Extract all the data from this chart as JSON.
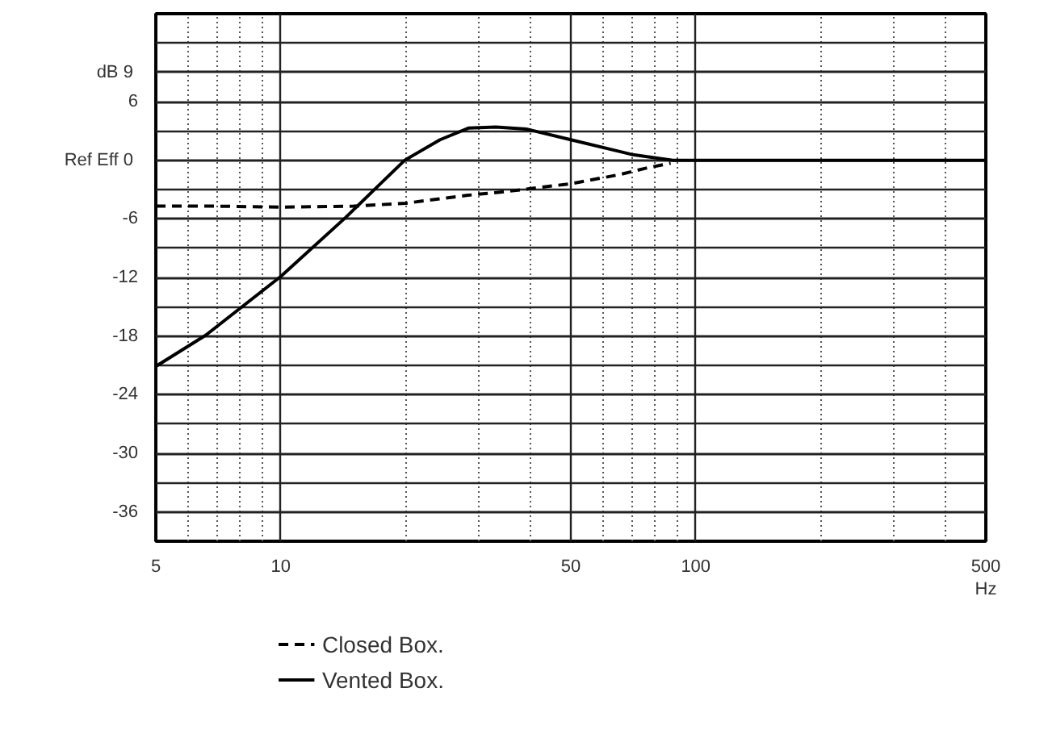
{
  "chart_data": {
    "type": "line",
    "xlabel": "Hz",
    "log": "x",
    "grid": true,
    "legend": "bottom left",
    "xlim": [
      5,
      500
    ],
    "ylim": [
      -39,
      15
    ],
    "xticks": [
      5,
      10,
      50,
      100,
      500
    ],
    "yticks": [
      {
        "value": 9,
        "label": "dB  9"
      },
      6,
      {
        "value": 0,
        "label": "Ref Eff  0"
      },
      -6,
      -12,
      -18,
      -24,
      -30,
      -36
    ],
    "series": [
      {
        "name": "Closed Box.",
        "color": "#000000",
        "line_style": "dashed",
        "x": [
          5,
          7,
          10,
          15,
          20,
          28,
          35,
          50,
          65,
          76,
          87
        ],
        "values": [
          -4.7,
          -4.7,
          -4.8,
          -4.7,
          -4.4,
          -3.6,
          -3.2,
          -2.4,
          -1.5,
          -0.8,
          -0.3
        ]
      },
      {
        "name": "Vented Box.",
        "color": "#000000",
        "line_style": "solid",
        "x": [
          5,
          6.6,
          10,
          14.3,
          17.1,
          19.9,
          24.2,
          28.4,
          33,
          39,
          50,
          70,
          88,
          100,
          200,
          500
        ],
        "values": [
          -21.1,
          -17.9,
          -11.9,
          -5.9,
          -2.7,
          0,
          2.1,
          3.3,
          3.4,
          3.2,
          2.1,
          0.6,
          0,
          0,
          0,
          0
        ]
      }
    ]
  }
}
